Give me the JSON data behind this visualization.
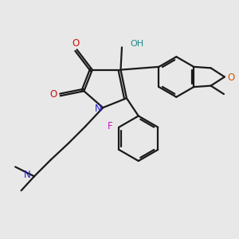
{
  "bg_color": "#e8e8e8",
  "bond_color": "#1a1a1a",
  "fig_size": [
    3.0,
    3.0
  ],
  "dpi": 100,
  "colors": {
    "N": "#2020cc",
    "O": "#cc1111",
    "O2": "#cc5500",
    "F": "#cc11cc",
    "OH": "#228888"
  }
}
